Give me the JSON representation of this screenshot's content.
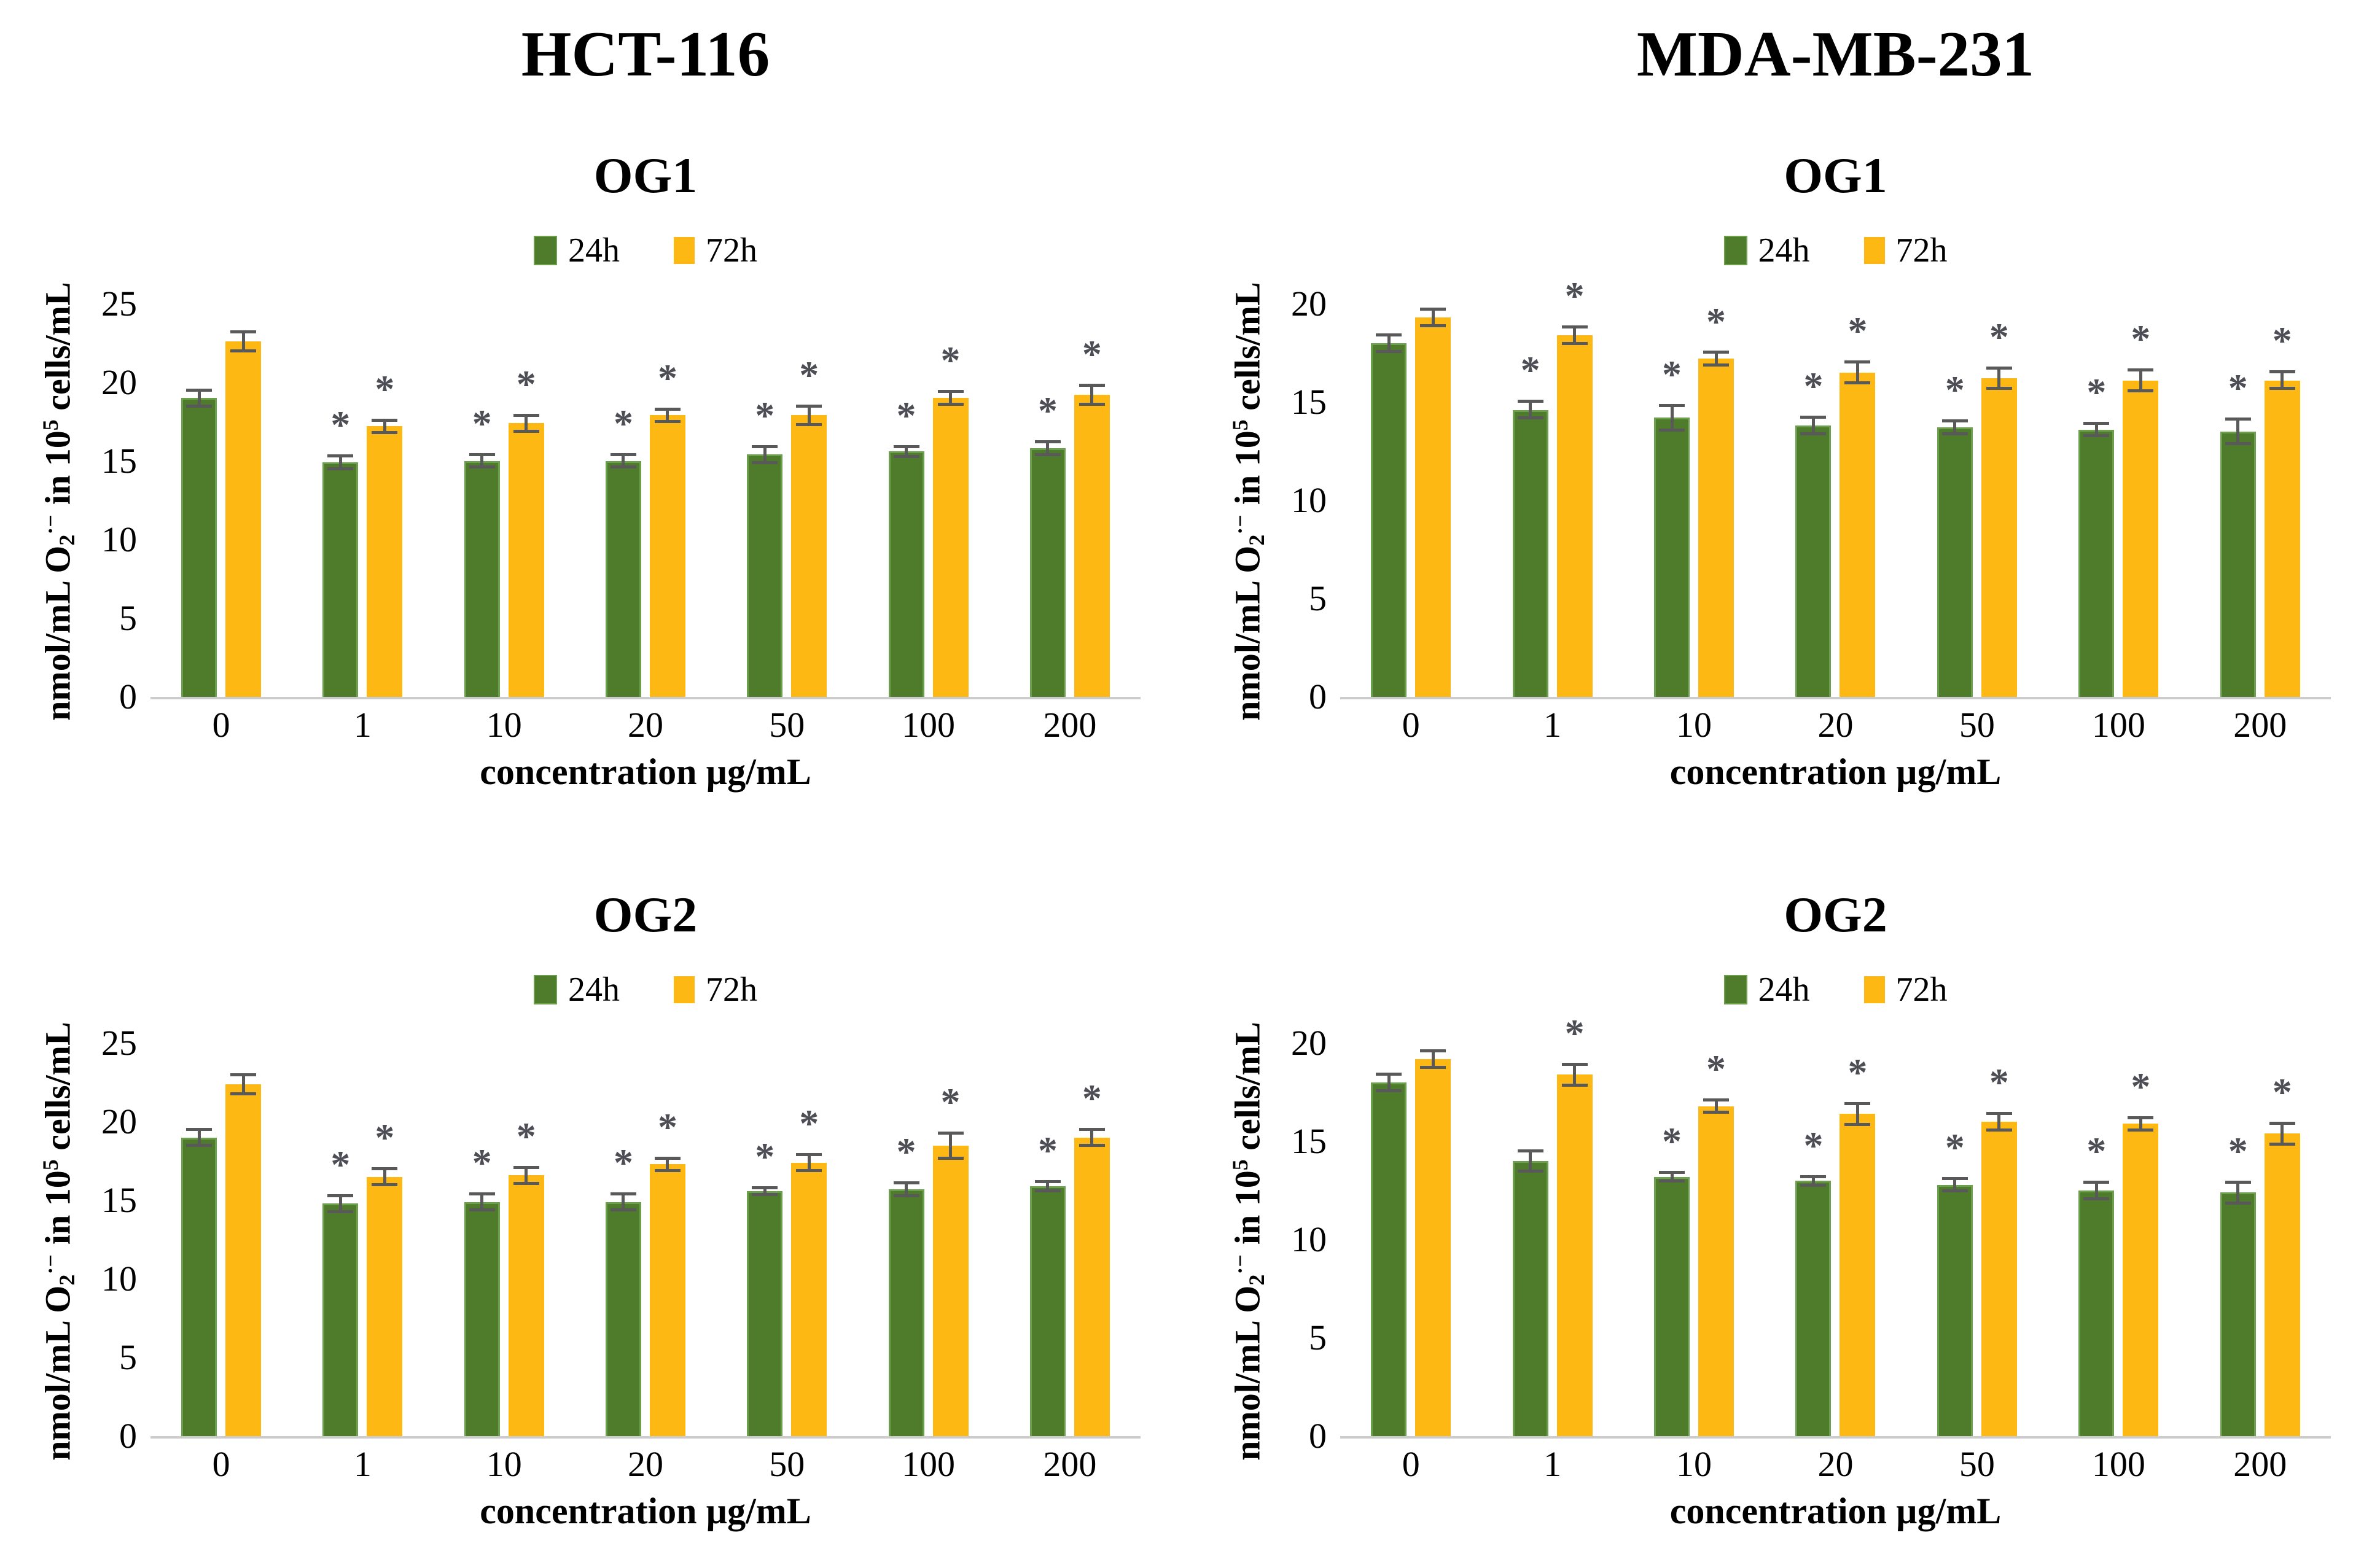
{
  "axis": {
    "y_pre": "nmol/mL O",
    "y_sub": "2",
    "y_sup": "·−",
    "y_mid": "in 10",
    "y_exp": "5",
    "y_post": " cells/mL",
    "x_label": "concentration µg/mL"
  },
  "colors": {
    "green_fill": "#4e7c2b",
    "green_border": "#6da04e",
    "yellow_fill": "#fdb813",
    "error_bar": "#595959",
    "baseline": "#cccccc",
    "asterisk": "#4d4d55"
  },
  "chart_data": [
    {
      "type": "bar",
      "cell_line": "HCT-116",
      "subtitle": "OG1",
      "categories": [
        "0",
        "1",
        "10",
        "20",
        "50",
        "100",
        "200"
      ],
      "ylim": [
        0,
        25
      ],
      "ytick_step": 5,
      "legend_position": "top",
      "grid": false,
      "series": [
        {
          "name": "24h",
          "color": "#4e7c2b",
          "border": "#6da04e",
          "values": [
            19.0,
            14.9,
            15.0,
            15.0,
            15.4,
            15.6,
            15.8
          ],
          "errors": [
            0.6,
            0.5,
            0.5,
            0.5,
            0.6,
            0.4,
            0.5
          ],
          "sig": [
            false,
            true,
            true,
            true,
            true,
            true,
            true
          ]
        },
        {
          "name": "72h",
          "color": "#fdb813",
          "values": [
            22.6,
            17.2,
            17.4,
            17.9,
            17.9,
            19.0,
            19.2
          ],
          "errors": [
            0.7,
            0.5,
            0.6,
            0.5,
            0.7,
            0.5,
            0.7
          ],
          "sig": [
            false,
            true,
            true,
            true,
            true,
            true,
            true
          ]
        }
      ]
    },
    {
      "type": "bar",
      "cell_line": "MDA-MB-231",
      "subtitle": "OG1",
      "categories": [
        "0",
        "1",
        "10",
        "20",
        "50",
        "100",
        "200"
      ],
      "ylim": [
        0,
        20
      ],
      "ytick_step": 5,
      "legend_position": "top",
      "grid": false,
      "series": [
        {
          "name": "24h",
          "color": "#4e7c2b",
          "border": "#6da04e",
          "values": [
            18.0,
            14.6,
            14.2,
            13.8,
            13.7,
            13.6,
            13.5
          ],
          "errors": [
            0.5,
            0.5,
            0.7,
            0.5,
            0.4,
            0.4,
            0.7
          ],
          "sig": [
            false,
            true,
            true,
            true,
            true,
            true,
            true
          ]
        },
        {
          "name": "72h",
          "color": "#fdb813",
          "values": [
            19.3,
            18.4,
            17.2,
            16.5,
            16.2,
            16.1,
            16.1
          ],
          "errors": [
            0.5,
            0.5,
            0.4,
            0.6,
            0.6,
            0.6,
            0.5
          ],
          "sig": [
            false,
            true,
            true,
            true,
            true,
            true,
            true
          ]
        }
      ]
    },
    {
      "type": "bar",
      "cell_line": "",
      "subtitle": "OG2",
      "categories": [
        "0",
        "1",
        "10",
        "20",
        "50",
        "100",
        "200"
      ],
      "ylim": [
        0,
        25
      ],
      "ytick_step": 5,
      "legend_position": "top",
      "grid": false,
      "series": [
        {
          "name": "24h",
          "color": "#4e7c2b",
          "border": "#6da04e",
          "values": [
            19.0,
            14.8,
            14.9,
            14.9,
            15.6,
            15.7,
            15.9
          ],
          "errors": [
            0.6,
            0.6,
            0.6,
            0.6,
            0.3,
            0.5,
            0.4
          ],
          "sig": [
            false,
            true,
            true,
            true,
            true,
            true,
            true
          ]
        },
        {
          "name": "72h",
          "color": "#fdb813",
          "values": [
            22.4,
            16.5,
            16.6,
            17.3,
            17.4,
            18.5,
            19.0
          ],
          "errors": [
            0.7,
            0.6,
            0.6,
            0.5,
            0.6,
            0.9,
            0.6
          ],
          "sig": [
            false,
            true,
            true,
            true,
            true,
            true,
            true
          ]
        }
      ]
    },
    {
      "type": "bar",
      "cell_line": "",
      "subtitle": "OG2",
      "categories": [
        "0",
        "1",
        "10",
        "20",
        "50",
        "100",
        "200"
      ],
      "ylim": [
        0,
        20
      ],
      "ytick_step": 5,
      "legend_position": "top",
      "grid": false,
      "series": [
        {
          "name": "24h",
          "color": "#4e7c2b",
          "border": "#6da04e",
          "values": [
            18.0,
            14.0,
            13.2,
            13.0,
            12.8,
            12.5,
            12.4
          ],
          "errors": [
            0.5,
            0.6,
            0.3,
            0.3,
            0.4,
            0.5,
            0.6
          ],
          "sig": [
            false,
            false,
            true,
            true,
            true,
            true,
            true
          ]
        },
        {
          "name": "72h",
          "color": "#fdb813",
          "values": [
            19.2,
            18.4,
            16.8,
            16.4,
            16.0,
            15.9,
            15.4
          ],
          "errors": [
            0.5,
            0.6,
            0.4,
            0.6,
            0.5,
            0.4,
            0.6
          ],
          "sig": [
            false,
            true,
            true,
            true,
            true,
            true,
            true
          ]
        }
      ]
    }
  ]
}
